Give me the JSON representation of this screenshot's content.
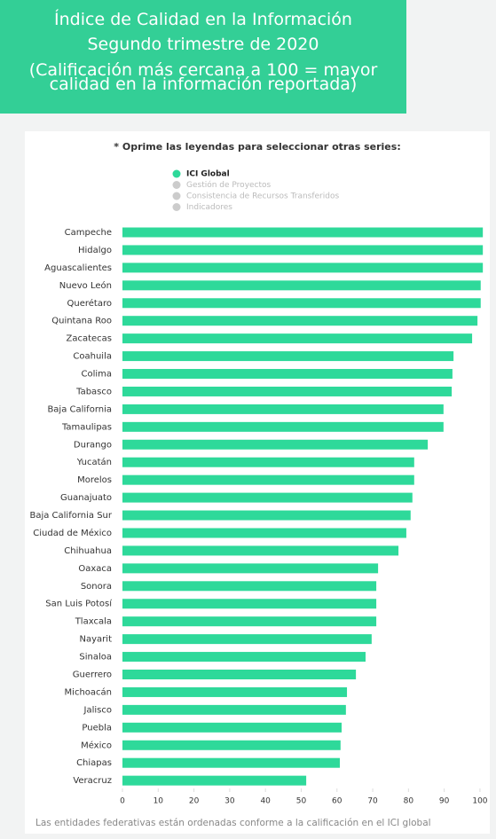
{
  "header": {
    "title": "Índice de Calidad en la Información",
    "subtitle": "Segundo trimestre de 2020",
    "note": "(Calificación más cercana a 100 = mayor calidad en la información reportada)"
  },
  "chart_data": {
    "type": "bar",
    "orientation": "horizontal",
    "subtitle": "* Oprime las leyendas para seleccionar otras series:",
    "footnote": "Las entidades federativas están ordenadas conforme a la calificación en el ICI global",
    "categories": [
      "Campeche",
      "Hidalgo",
      "Aguascalientes",
      "Nuevo León",
      "Querétaro",
      "Quintana Roo",
      "Zacatecas",
      "Coahuila",
      "Colima",
      "Tabasco",
      "Baja California",
      "Tamaulipas",
      "Durango",
      "Yucatán",
      "Morelos",
      "Guanajuato",
      "Baja California Sur",
      "Ciudad de México",
      "Chihuahua",
      "Oaxaca",
      "Sonora",
      "San Luis Potosí",
      "Tlaxcala",
      "Nayarit",
      "Sinaloa",
      "Guerrero",
      "Michoacán",
      "Jalisco",
      "Puebla",
      "México",
      "Chiapas",
      "Veracruz"
    ],
    "series": [
      {
        "name": "ICI Global",
        "color": "#2ed99a",
        "values": [
          100.8,
          100.8,
          100.8,
          100.2,
          100.2,
          99.3,
          97.8,
          92.6,
          92.3,
          92.1,
          89.8,
          89.8,
          85.4,
          81.6,
          81.6,
          81.1,
          80.6,
          79.4,
          77.2,
          71.5,
          71.0,
          71.0,
          71.0,
          69.7,
          68.0,
          65.3,
          62.8,
          62.5,
          61.3,
          61.0,
          60.8,
          51.4
        ]
      }
    ],
    "hidden_series": [
      "Gestión de Proyectos",
      "Consistencia de Recursos Transferidos",
      "Indicadores"
    ],
    "hidden_color": "#cccccc",
    "xlim": [
      0,
      102
    ],
    "xticks": [
      0,
      10,
      20,
      30,
      40,
      50,
      60,
      70,
      80,
      90,
      100
    ],
    "grid": false
  }
}
